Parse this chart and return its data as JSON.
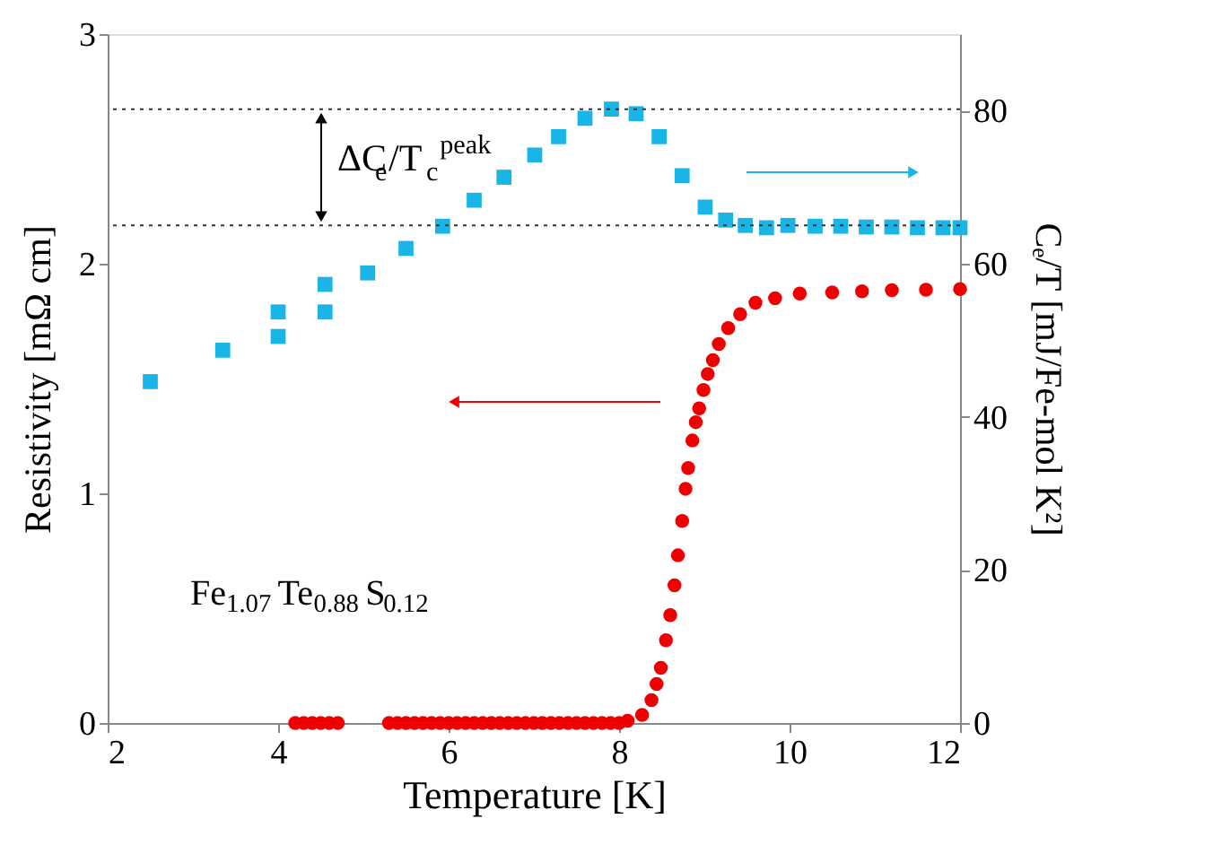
{
  "chart_data": {
    "type": "scatter",
    "xlabel": "Temperature [K]",
    "ylabel": "Resistivity [mΩ cm]",
    "y2label": "Cₑ/T [mJ/Fe-mol K²]",
    "xlim": [
      2,
      12
    ],
    "xticks": [
      2,
      4,
      6,
      8,
      10,
      12
    ],
    "ylim": [
      0,
      3
    ],
    "yticks": [
      0,
      1,
      2,
      3
    ],
    "y2lim": [
      0,
      90
    ],
    "y2ticks": [
      0,
      20,
      40,
      60,
      80
    ],
    "legend": false,
    "grid": false,
    "series": [
      {
        "color": "#ee0000",
        "marker": "circle",
        "axis": "y",
        "x": [
          4.2,
          4.3,
          4.4,
          4.5,
          4.6,
          4.7,
          5.3,
          5.4,
          5.5,
          5.6,
          5.7,
          5.8,
          5.9,
          6.0,
          6.1,
          6.2,
          6.3,
          6.4,
          6.5,
          6.6,
          6.7,
          6.8,
          6.9,
          7.0,
          7.1,
          7.2,
          7.3,
          7.4,
          7.5,
          7.6,
          7.7,
          7.8,
          7.9,
          8.0,
          8.1,
          8.27,
          8.38,
          8.44,
          8.49,
          8.55,
          8.6,
          8.65,
          8.69,
          8.74,
          8.78,
          8.81,
          8.86,
          8.9,
          8.94,
          8.99,
          9.04,
          9.1,
          9.17,
          9.28,
          9.42,
          9.6,
          9.83,
          10.12,
          10.5,
          10.85,
          11.2,
          11.6,
          12.0
        ],
        "values": [
          0,
          0,
          0,
          0,
          0,
          0,
          0,
          0,
          0,
          0,
          0,
          0,
          0,
          0,
          0,
          0,
          0,
          0,
          0,
          0,
          0,
          0,
          0,
          0,
          0,
          0,
          0,
          0,
          0,
          0,
          0,
          0,
          0,
          0,
          0.01,
          0.035,
          0.1,
          0.17,
          0.24,
          0.36,
          0.47,
          0.6,
          0.73,
          0.88,
          1.02,
          1.11,
          1.23,
          1.31,
          1.37,
          1.45,
          1.52,
          1.58,
          1.65,
          1.72,
          1.78,
          1.83,
          1.85,
          1.87,
          1.875,
          1.88,
          1.885,
          1.887,
          1.89
        ]
      },
      {
        "color": "#19b5e6",
        "marker": "square",
        "axis": "y2",
        "x": [
          2.5,
          3.35,
          4.0,
          4.0,
          4.55,
          4.55,
          5.05,
          5.5,
          5.93,
          6.3,
          6.65,
          7.01,
          7.29,
          7.6,
          7.91,
          8.2,
          8.47,
          8.74,
          9.01,
          9.25,
          9.48,
          9.73,
          9.98,
          10.3,
          10.6,
          10.9,
          11.2,
          11.5,
          11.8,
          12.0
        ],
        "values": [
          44.6,
          48.7,
          50.5,
          53.7,
          53.7,
          57.3,
          58.8,
          62.0,
          64.9,
          68.3,
          71.3,
          74.2,
          76.6,
          79.0,
          80.2,
          79.6,
          76.6,
          71.5,
          67.4,
          65.7,
          65.0,
          64.7,
          65.0,
          64.9,
          64.9,
          64.8,
          64.8,
          64.7,
          64.7,
          64.7
        ]
      }
    ],
    "ref_lines": [
      {
        "axis": "y2",
        "value": 80.2,
        "line_style": "dotted",
        "color": "#333333"
      },
      {
        "axis": "y2",
        "value": 65.0,
        "line_style": "dotted",
        "color": "#333333"
      }
    ],
    "annotations": [
      "ΔC$_{e}$/T$_{c}$$^{peak}$",
      "Fe$_{1.07}$Te$_{0.88}$S$_{0.12}$"
    ]
  }
}
